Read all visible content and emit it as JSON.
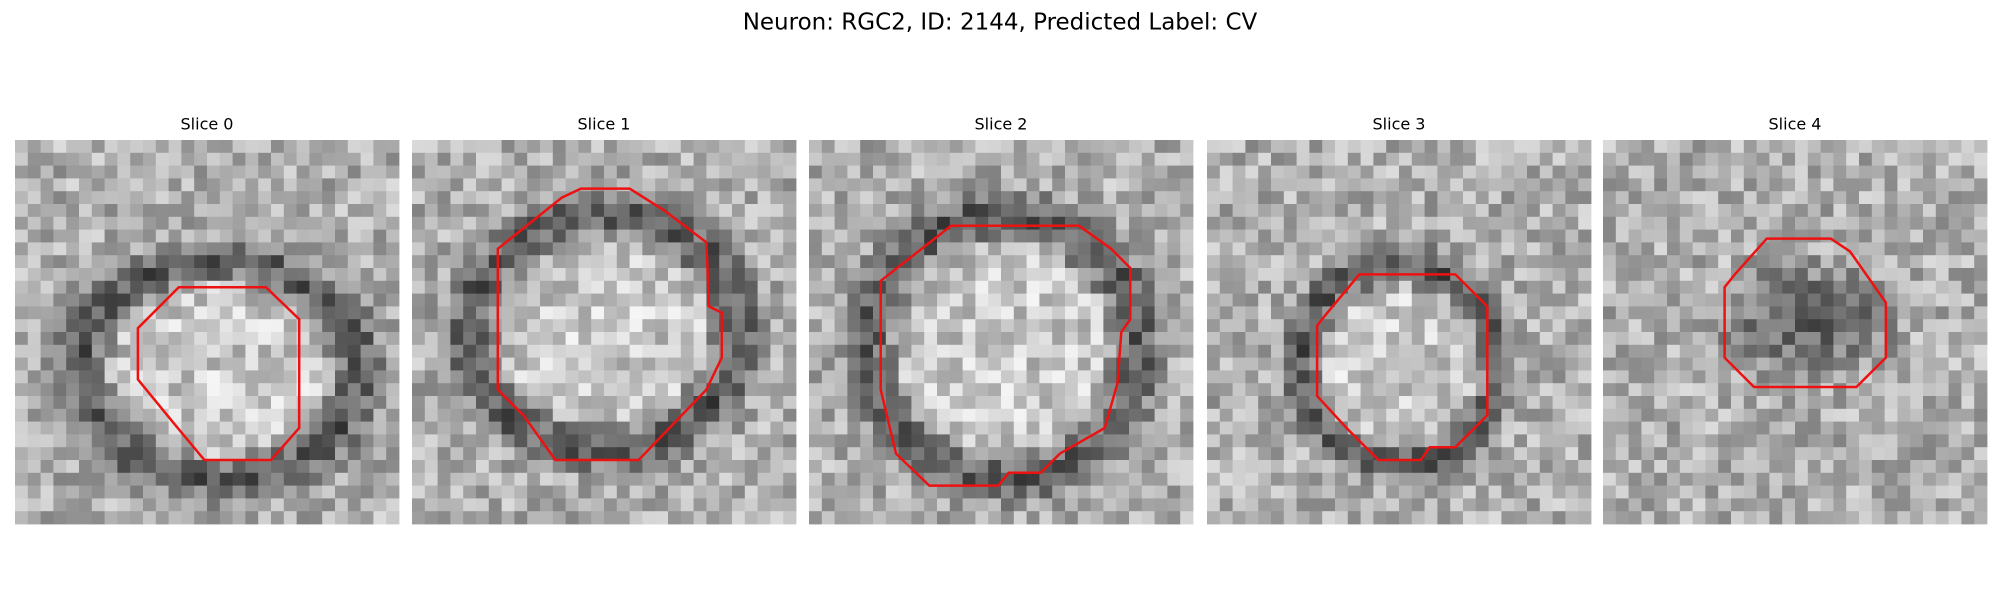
{
  "title": "Neuron: RGC2, ID: 2144, Predicted Label: CV",
  "panels": [
    {
      "title": "Slice 0"
    },
    {
      "title": "Slice 1"
    },
    {
      "title": "Slice 2"
    },
    {
      "title": "Slice 3"
    },
    {
      "title": "Slice 4"
    }
  ]
}
